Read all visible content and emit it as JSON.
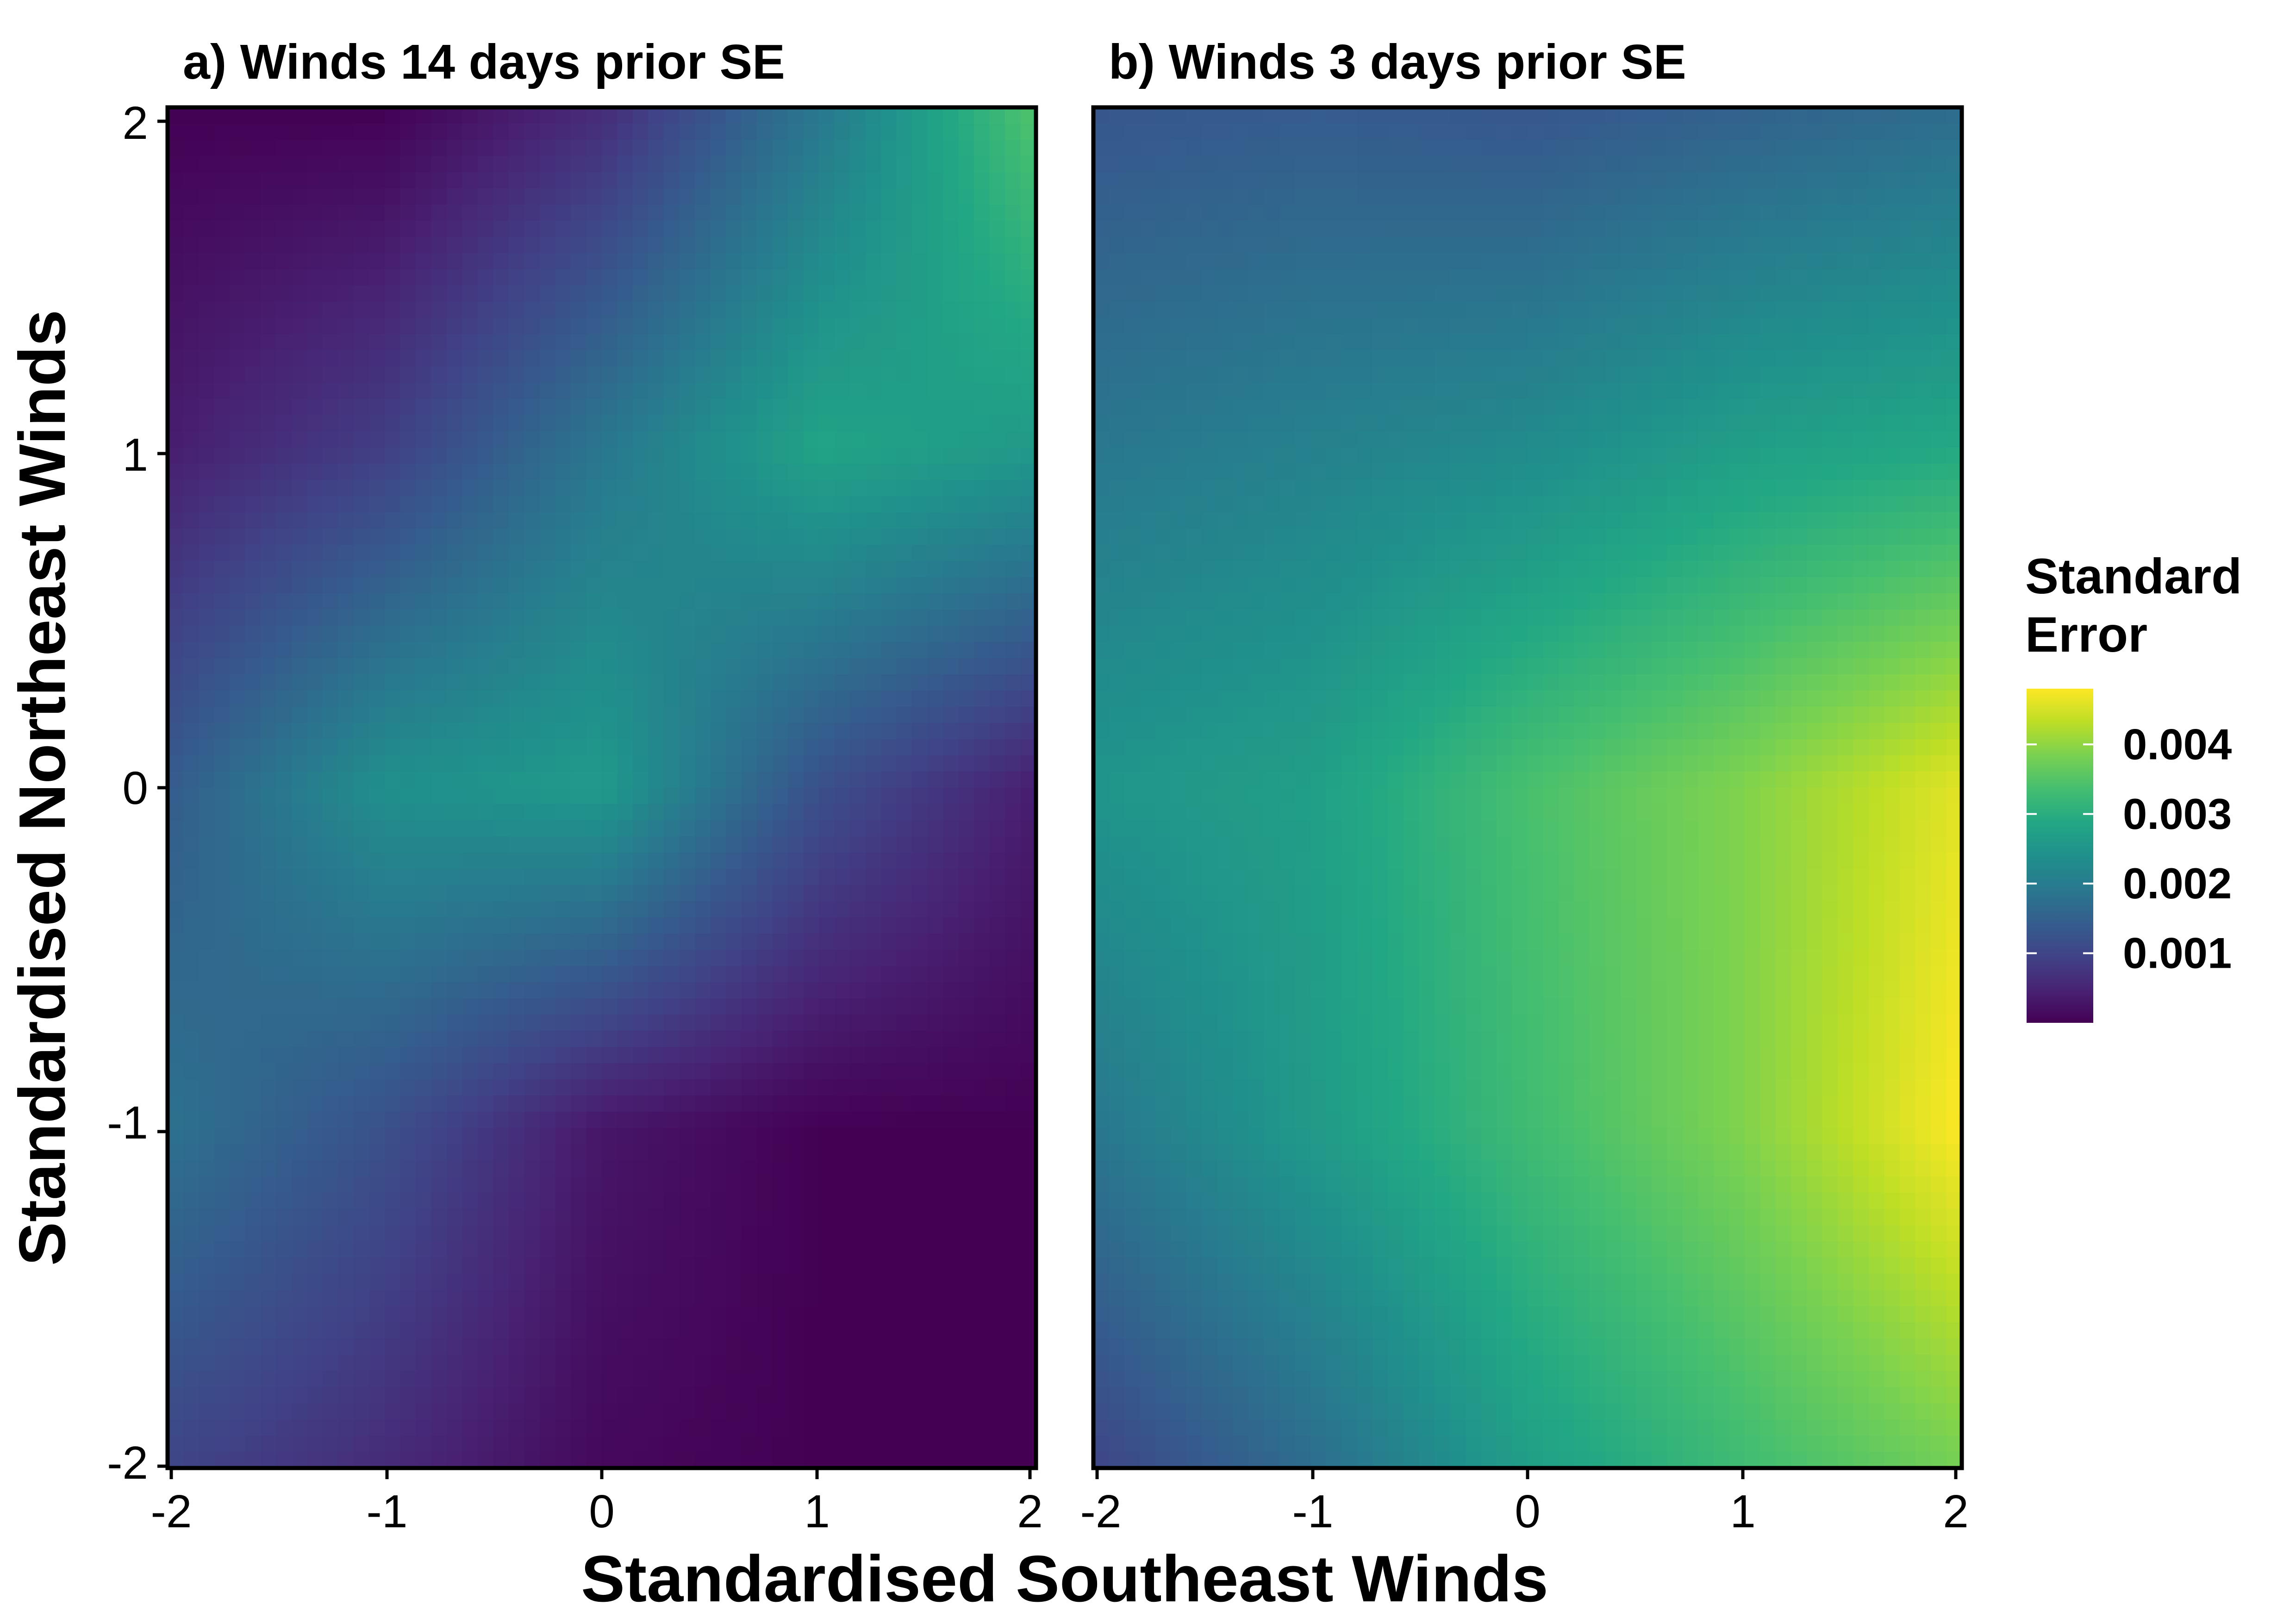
{
  "chart_data": {
    "type": "heatmap",
    "xlabel": "Standardised Southeast Winds",
    "ylabel": "Standardised Northeast Winds",
    "xlim": [
      -2,
      2
    ],
    "ylim": [
      -2,
      2
    ],
    "x_ticks": [
      "-2",
      "-1",
      "0",
      "1",
      "2"
    ],
    "y_ticks": [
      "-2",
      "-1",
      "0",
      "1",
      "2"
    ],
    "colormap": "viridis",
    "legend": {
      "title_lines": [
        "Standard",
        "Error"
      ],
      "range": [
        0.0,
        0.0048
      ],
      "ticks": [
        {
          "value": 0.001,
          "label": "0.001"
        },
        {
          "value": 0.002,
          "label": "0.002"
        },
        {
          "value": 0.003,
          "label": "0.003"
        },
        {
          "value": 0.004,
          "label": "0.004"
        }
      ],
      "position": "right"
    },
    "panels": [
      {
        "title": "a) Winds 14 days prior SE",
        "grid_x": [
          -2,
          -1,
          0,
          1,
          2
        ],
        "grid_y": [
          2,
          1,
          0,
          -1,
          -2
        ],
        "z": [
          [
            0.0,
            0.0,
            0.0006,
            0.0019,
            0.0035
          ],
          [
            0.0004,
            0.0009,
            0.0019,
            0.0028,
            0.0026
          ],
          [
            0.0014,
            0.0024,
            0.0026,
            0.0012,
            0.0004
          ],
          [
            0.0018,
            0.0012,
            0.0003,
            0.0,
            0.0
          ],
          [
            0.001,
            0.0006,
            0.0001,
            0.0,
            0.0
          ]
        ]
      },
      {
        "title": "b) Winds 3 days prior SE",
        "grid_x": [
          -2,
          -1,
          0,
          1,
          2
        ],
        "grid_y": [
          2,
          1,
          0,
          -1,
          -2
        ],
        "z": [
          [
            0.0013,
            0.0014,
            0.0013,
            0.0015,
            0.0017
          ],
          [
            0.0019,
            0.0021,
            0.0023,
            0.0027,
            0.0029
          ],
          [
            0.0025,
            0.0027,
            0.0034,
            0.0039,
            0.0046
          ],
          [
            0.0019,
            0.0026,
            0.0033,
            0.0039,
            0.0048
          ],
          [
            0.001,
            0.0017,
            0.0027,
            0.0033,
            0.0038
          ]
        ]
      }
    ]
  }
}
